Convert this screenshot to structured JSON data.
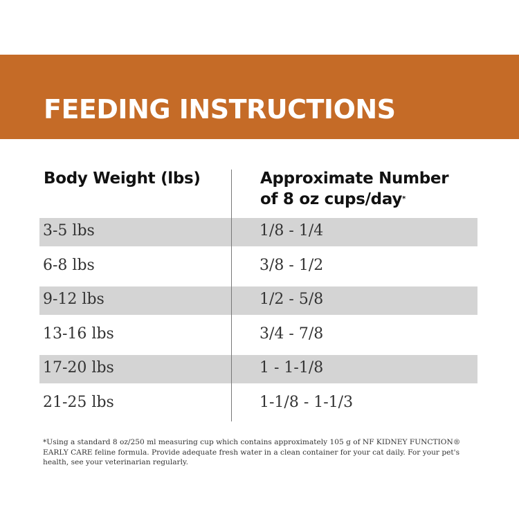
{
  "title": "FEEDING INSTRUCTIONS",
  "colors": {
    "band": "#c56b27",
    "row_shade": "#d4d4d4"
  },
  "headers": {
    "weight": "Body Weight (lbs)",
    "cups_line1": "Approximate Number",
    "cups_line2": "of 8 oz cups/day",
    "cups_mark": "*"
  },
  "rows": [
    {
      "weight": "3-5 lbs",
      "cups": "1/8 - 1/4"
    },
    {
      "weight": "6-8 lbs",
      "cups": "3/8 - 1/2"
    },
    {
      "weight": "9-12 lbs",
      "cups": "1/2 - 5/8"
    },
    {
      "weight": "13-16 lbs",
      "cups": "3/4 - 7/8"
    },
    {
      "weight": "17-20 lbs",
      "cups": "1 - 1-1/8"
    },
    {
      "weight": "21-25 lbs",
      "cups": "1-1/8 - 1-1/3"
    }
  ],
  "footnote": "*Using a standard 8 oz/250 ml measuring cup which contains approximately 105 g of NF KIDNEY FUNCTION® EARLY CARE feline formula. Provide adequate fresh water in a clean container for your cat daily. For your pet's health, see your veterinarian regularly."
}
